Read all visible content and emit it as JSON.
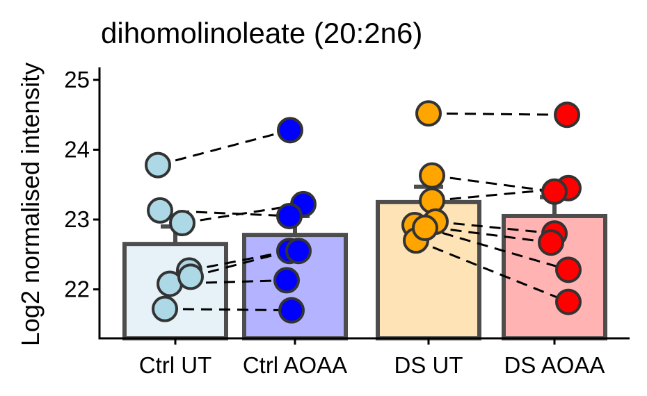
{
  "chart_data": {
    "type": "bar",
    "title": "dihomolinoleate (20:2n6)",
    "xlabel": "",
    "ylabel": "Log2 normalised intensity",
    "ylim": [
      21.3,
      25.2
    ],
    "yticks": [
      22,
      23,
      24,
      25
    ],
    "grid": false,
    "legend": "none",
    "categories": [
      "Ctrl UT",
      "Ctrl AOAA",
      "DS UT",
      "DS AOAA"
    ],
    "bar_fill": [
      "#e6f2f7",
      "#b3b3ff",
      "#fde3b5",
      "#ffb3b3"
    ],
    "point_fill": [
      "#add8e6",
      "#0000ff",
      "#ffa500",
      "#ff0000"
    ],
    "values": [
      22.65,
      22.78,
      23.25,
      23.05
    ],
    "error_upper": [
      22.9,
      23.05,
      23.47,
      23.32
    ],
    "points": [
      [
        23.78,
        23.13,
        22.95,
        22.27,
        22.08,
        22.18,
        21.72
      ],
      [
        24.28,
        23.22,
        23.05,
        22.55,
        22.55,
        22.13,
        21.7
      ],
      [
        24.52,
        23.63,
        23.27,
        22.92,
        22.97,
        22.7,
        22.88
      ],
      [
        24.5,
        23.45,
        23.4,
        22.8,
        22.67,
        22.28,
        21.82
      ]
    ],
    "pairs": [
      [
        [
          23.78,
          24.28
        ],
        [
          23.13,
          23.05
        ],
        [
          22.95,
          23.22
        ],
        [
          22.27,
          22.55
        ],
        [
          22.18,
          22.55
        ],
        [
          22.08,
          22.13
        ],
        [
          21.72,
          21.7
        ]
      ],
      [
        [
          24.52,
          24.5
        ],
        [
          23.63,
          23.4
        ],
        [
          23.27,
          23.45
        ],
        [
          22.97,
          22.8
        ],
        [
          22.92,
          22.67
        ],
        [
          22.88,
          22.28
        ],
        [
          22.7,
          21.82
        ]
      ]
    ]
  }
}
